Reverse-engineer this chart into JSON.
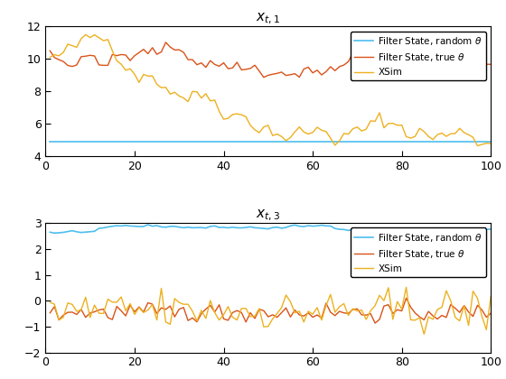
{
  "fig_width": 5.6,
  "fig_height": 4.2,
  "dpi": 100,
  "seed": 42,
  "n_points": 100,
  "ax1": {
    "title": "$x_{t,1}$",
    "xlim": [
      0,
      100
    ],
    "ylim": [
      4,
      12
    ],
    "yticks": [
      4,
      6,
      8,
      10,
      12
    ],
    "xticks": [
      0,
      20,
      40,
      60,
      80,
      100
    ],
    "filter_random_value": 4.9,
    "xsim_start": 10.1,
    "xsim_noise_scale": 0.35,
    "xsim_drift": -0.018,
    "filter_true_start": 10.5,
    "filter_true_noise_scale": 0.28,
    "filter_true_drift": -0.018,
    "legend_loc": "upper right"
  },
  "ax2": {
    "title": "$x_{t,3}$",
    "xlim": [
      0,
      100
    ],
    "ylim": [
      -2,
      3
    ],
    "yticks": [
      -2,
      -1,
      0,
      1,
      2,
      3
    ],
    "xticks": [
      0,
      20,
      40,
      60,
      80,
      100
    ],
    "filter_random_start": 2.65,
    "filter_random_noise_scale": 0.03,
    "filter_random_drift": 0.0,
    "xsim_mean": -0.4,
    "xsim_noise_scale": 0.42,
    "filter_true_mean": -0.45,
    "filter_true_noise_scale": 0.18,
    "legend_loc": "upper right"
  },
  "colors": {
    "filter_random": "#4DBEEE",
    "filter_true": "#D95319",
    "xsim": "#EDB120"
  },
  "legend_labels": {
    "filter_random": "Filter State, random $\\theta$",
    "filter_true": "Filter State, true $\\theta$",
    "xsim": "XSim"
  },
  "bg_color": "white",
  "axes_facecolor": "#F0F0F0",
  "axes_color": "black",
  "font_color": "black",
  "linewidth_random": 1.2,
  "linewidth_true": 1.0,
  "linewidth_xsim": 1.0
}
